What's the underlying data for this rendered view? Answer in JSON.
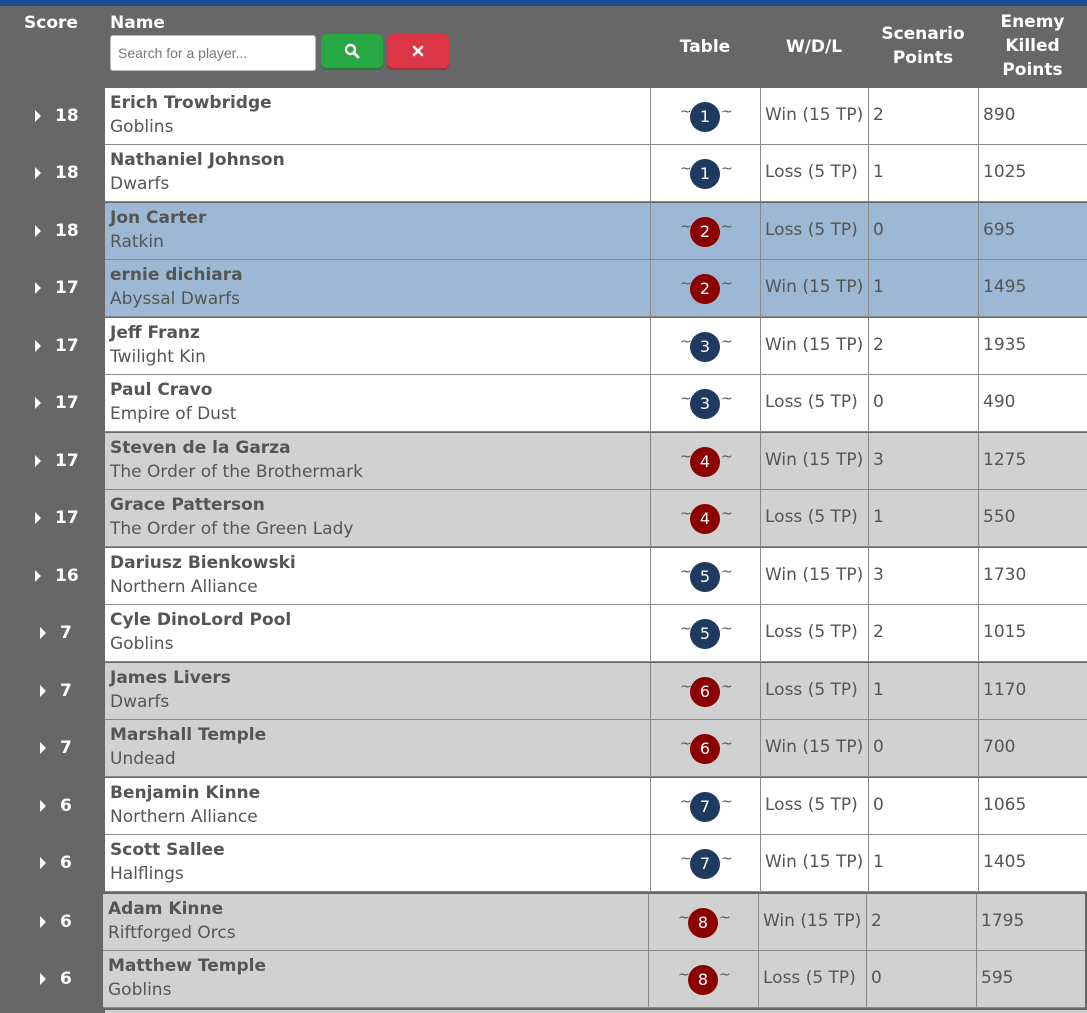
{
  "header": {
    "score_label": "Score",
    "name_label": "Name",
    "search_placeholder": "Search for a player...",
    "search_value": "",
    "search_button_icon": "search-icon",
    "clear_button_icon": "close-icon",
    "table_label": "Table",
    "wdl_label": "W/D/L",
    "scenario_label_1": "Scenario",
    "scenario_label_2": "Points",
    "enemy_label_1": "Enemy",
    "enemy_label_2": "Killed",
    "enemy_label_3": "Points"
  },
  "colors": {
    "topbar": "#1d4f96",
    "background": "#676767",
    "row_white": "#ffffff",
    "row_blue": "#9db8d4",
    "row_gray": "#d1d1d1",
    "badge_blue": "#1e3a5f",
    "badge_red": "#8b0000",
    "search_button": "#28a745",
    "clear_button": "#dc3545",
    "text": "#555555"
  },
  "rows": [
    {
      "score": "18",
      "name": "Erich Trowbridge",
      "faction": "Goblins",
      "table": "1",
      "wdl": "Win (15 TP)",
      "scenario": "2",
      "enemy_killed": "890",
      "row_color": "white",
      "badge_color": "blue"
    },
    {
      "score": "18",
      "name": "Nathaniel Johnson",
      "faction": "Dwarfs",
      "table": "1",
      "wdl": "Loss (5 TP)",
      "scenario": "1",
      "enemy_killed": "1025",
      "row_color": "white",
      "badge_color": "blue"
    },
    {
      "score": "18",
      "name": "Jon Carter",
      "faction": "Ratkin",
      "table": "2",
      "wdl": "Loss (5 TP)",
      "scenario": "0",
      "enemy_killed": "695",
      "row_color": "blue",
      "badge_color": "red"
    },
    {
      "score": "17",
      "name": "ernie dichiara",
      "faction": "Abyssal Dwarfs",
      "table": "2",
      "wdl": "Win (15 TP)",
      "scenario": "1",
      "enemy_killed": "1495",
      "row_color": "blue",
      "badge_color": "red"
    },
    {
      "score": "17",
      "name": "Jeff Franz",
      "faction": "Twilight Kin",
      "table": "3",
      "wdl": "Win (15 TP)",
      "scenario": "2",
      "enemy_killed": "1935",
      "row_color": "white",
      "badge_color": "blue"
    },
    {
      "score": "17",
      "name": "Paul Cravo",
      "faction": "Empire of Dust",
      "table": "3",
      "wdl": "Loss (5 TP)",
      "scenario": "0",
      "enemy_killed": "490",
      "row_color": "white",
      "badge_color": "blue"
    },
    {
      "score": "17",
      "name": "Steven de la Garza",
      "faction": "The Order of the Brothermark",
      "table": "4",
      "wdl": "Win (15 TP)",
      "scenario": "3",
      "enemy_killed": "1275",
      "row_color": "gray",
      "badge_color": "red"
    },
    {
      "score": "17",
      "name": "Grace Patterson",
      "faction": "The Order of the Green Lady",
      "table": "4",
      "wdl": "Loss (5 TP)",
      "scenario": "1",
      "enemy_killed": "550",
      "row_color": "gray",
      "badge_color": "red"
    },
    {
      "score": "16",
      "name": "Dariusz Bienkowski",
      "faction": "Northern Alliance",
      "table": "5",
      "wdl": "Win (15 TP)",
      "scenario": "3",
      "enemy_killed": "1730",
      "row_color": "white",
      "badge_color": "blue"
    },
    {
      "score": "7",
      "name": "Cyle DinoLord Pool",
      "faction": "Goblins",
      "table": "5",
      "wdl": "Loss (5 TP)",
      "scenario": "2",
      "enemy_killed": "1015",
      "row_color": "white",
      "badge_color": "blue"
    },
    {
      "score": "7",
      "name": "James Livers",
      "faction": "Dwarfs",
      "table": "6",
      "wdl": "Loss (5 TP)",
      "scenario": "1",
      "enemy_killed": "1170",
      "row_color": "gray",
      "badge_color": "red"
    },
    {
      "score": "7",
      "name": "Marshall Temple",
      "faction": "Undead",
      "table": "6",
      "wdl": "Win (15 TP)",
      "scenario": "0",
      "enemy_killed": "700",
      "row_color": "gray",
      "badge_color": "red"
    },
    {
      "score": "6",
      "name": "Benjamin Kinne",
      "faction": "Northern Alliance",
      "table": "7",
      "wdl": "Loss (5 TP)",
      "scenario": "0",
      "enemy_killed": "1065",
      "row_color": "white",
      "badge_color": "blue"
    },
    {
      "score": "6",
      "name": "Scott Sallee",
      "faction": "Halflings",
      "table": "7",
      "wdl": "Win (15 TP)",
      "scenario": "1",
      "enemy_killed": "1405",
      "row_color": "white",
      "badge_color": "blue"
    },
    {
      "score": "6",
      "name": "Adam Kinne",
      "faction": "Riftforged Orcs",
      "table": "8",
      "wdl": "Win (15 TP)",
      "scenario": "2",
      "enemy_killed": "1795",
      "row_color": "gray",
      "badge_color": "red"
    },
    {
      "score": "6",
      "name": "Matthew Temple",
      "faction": "Goblins",
      "table": "8",
      "wdl": "Loss (5 TP)",
      "scenario": "0",
      "enemy_killed": "595",
      "row_color": "gray",
      "badge_color": "red"
    }
  ]
}
